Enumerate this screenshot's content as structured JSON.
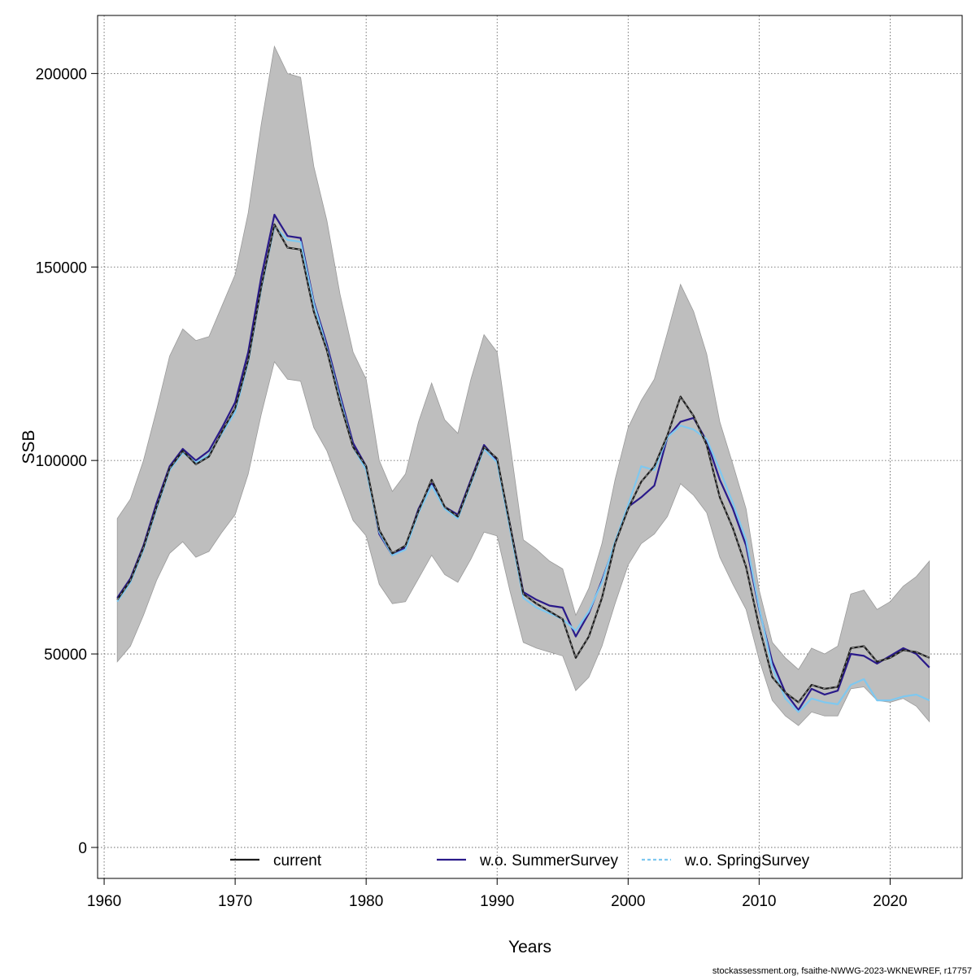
{
  "chart_data": {
    "type": "line",
    "xlabel": "Years",
    "ylabel": "SSB",
    "xlim": [
      1959.5,
      2025.5
    ],
    "ylim": [
      -8000,
      215000
    ],
    "x_ticks": [
      1960,
      1970,
      1980,
      1990,
      2000,
      2010,
      2020
    ],
    "y_ticks": [
      0,
      50000,
      100000,
      150000,
      200000
    ],
    "grid": true,
    "legend_position": "bottom",
    "x": [
      1961,
      1962,
      1963,
      1964,
      1965,
      1966,
      1967,
      1968,
      1969,
      1970,
      1971,
      1972,
      1973,
      1974,
      1975,
      1976,
      1977,
      1978,
      1979,
      1980,
      1981,
      1982,
      1983,
      1984,
      1985,
      1986,
      1987,
      1988,
      1989,
      1990,
      1991,
      1992,
      1993,
      1994,
      1995,
      1996,
      1997,
      1998,
      1999,
      2000,
      2001,
      2002,
      2003,
      2004,
      2005,
      2006,
      2007,
      2008,
      2009,
      2010,
      2011,
      2012,
      2013,
      2014,
      2015,
      2016,
      2017,
      2018,
      2019,
      2020,
      2021,
      2022,
      2023
    ],
    "band": {
      "color": "#bebebe",
      "upper": [
        85000,
        90000,
        100000,
        113000,
        127000,
        134000,
        131000,
        132000,
        140000,
        148000,
        164000,
        187000,
        207000,
        200000,
        199000,
        176000,
        162000,
        143000,
        128000,
        121000,
        100000,
        92000,
        96500,
        110000,
        120000,
        110500,
        107000,
        121000,
        132500,
        128000,
        104000,
        79500,
        77000,
        74000,
        72000,
        60000,
        67000,
        78500,
        95000,
        108500,
        115500,
        121000,
        133000,
        145500,
        138500,
        127500,
        110000,
        99000,
        87500,
        66500,
        53000,
        49000,
        46000,
        51500,
        50000,
        52000,
        65500,
        66500,
        61500,
        63500,
        67500,
        70000,
        74000
      ],
      "lower": [
        48000,
        52000,
        60000,
        69000,
        76000,
        79000,
        75000,
        76500,
        81500,
        86000,
        96500,
        112000,
        125500,
        121000,
        120500,
        108500,
        102500,
        93500,
        84500,
        80500,
        68000,
        63000,
        63500,
        69500,
        75500,
        70500,
        68500,
        74500,
        81500,
        80500,
        66000,
        53000,
        51500,
        50500,
        49500,
        40500,
        44000,
        52000,
        63000,
        73000,
        78500,
        81000,
        85500,
        94000,
        91000,
        86500,
        75000,
        68000,
        61500,
        48500,
        38000,
        34000,
        31500,
        35000,
        34000,
        34000,
        41000,
        41500,
        38000,
        37500,
        38500,
        36500,
        32500
      ]
    },
    "series": [
      {
        "name": "current",
        "color": "#1c1c1c",
        "dashed": false,
        "values": [
          64000,
          69000,
          77500,
          88000,
          98000,
          102500,
          99000,
          101000,
          107500,
          113500,
          126000,
          145000,
          161000,
          155000,
          154500,
          138500,
          128500,
          115000,
          103500,
          98500,
          82000,
          76000,
          78000,
          87000,
          95000,
          88000,
          85500,
          94500,
          103500,
          100500,
          83000,
          65500,
          63000,
          61000,
          59000,
          49000,
          54500,
          64500,
          78500,
          87500,
          94500,
          98500,
          106500,
          116500,
          111500,
          104000,
          90500,
          82500,
          72500,
          57000,
          44000,
          40000,
          37500,
          42000,
          41000,
          41500,
          51500,
          52000,
          48000,
          49000,
          51000,
          50500,
          49000
        ]
      },
      {
        "name": "w.o. SummerSurvey",
        "color": "#2a1a8a",
        "dashed": false,
        "values": [
          64500,
          69500,
          78000,
          89000,
          98500,
          103000,
          100000,
          102500,
          108500,
          115000,
          128000,
          147500,
          163500,
          158000,
          157500,
          141000,
          130000,
          117000,
          104500,
          98500,
          81000,
          75500,
          77500,
          87500,
          94000,
          88000,
          86000,
          95000,
          104000,
          100000,
          83000,
          66000,
          64000,
          62500,
          62000,
          54500,
          60500,
          69000,
          78500,
          88000,
          90500,
          93500,
          106000,
          110000,
          111000,
          105000,
          95000,
          87500,
          78000,
          61500,
          48000,
          40000,
          35500,
          41000,
          39500,
          40500,
          50000,
          49500,
          47500,
          49500,
          51500,
          50000,
          46500
        ]
      },
      {
        "name": "w.o. SpringSurvey",
        "color": "#7ec8f0",
        "dashed": true,
        "values": [
          63500,
          68500,
          77000,
          87500,
          97500,
          102000,
          99500,
          101500,
          107000,
          112500,
          125500,
          144500,
          160500,
          157000,
          156500,
          140500,
          129000,
          116000,
          103500,
          97500,
          81500,
          75500,
          77000,
          86500,
          93500,
          87500,
          85000,
          94000,
          103000,
          99500,
          82000,
          64500,
          62000,
          60500,
          59000,
          56000,
          61000,
          68500,
          79000,
          88500,
          98500,
          97500,
          106000,
          109000,
          108000,
          105500,
          97500,
          89000,
          79500,
          62000,
          46500,
          38500,
          35000,
          38500,
          37500,
          37000,
          42000,
          43500,
          38000,
          38000,
          39000,
          39500,
          38000
        ]
      }
    ],
    "footer": "stockassessment.org, fsaithe-NWWG-2023-WKNEWREF, r17757"
  }
}
